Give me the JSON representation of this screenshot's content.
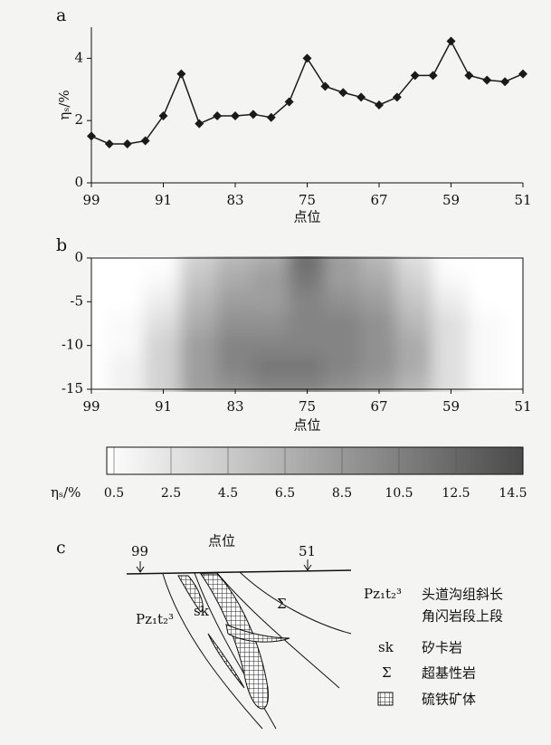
{
  "chart_data": [
    {
      "type": "line",
      "label": "a",
      "x": [
        99,
        97,
        95,
        93,
        91,
        89,
        87,
        85,
        83,
        81,
        79,
        77,
        75,
        73,
        71,
        69,
        67,
        65,
        63,
        61,
        59,
        57,
        55,
        53,
        51
      ],
      "series": [
        {
          "color": "#1a1a1a",
          "values": [
            1.5,
            1.25,
            1.25,
            1.35,
            2.15,
            3.5,
            1.9,
            2.15,
            2.15,
            2.2,
            2.1,
            2.6,
            4.0,
            3.1,
            2.9,
            2.75,
            2.5,
            2.75,
            3.45,
            3.45,
            4.55,
            3.45,
            3.3,
            3.25,
            3.5
          ]
        }
      ],
      "xlim": [
        99,
        51
      ],
      "xticks": [
        99,
        91,
        83,
        75,
        67,
        59,
        51
      ],
      "ylim": [
        0,
        5
      ],
      "yticks": [
        0,
        2,
        4
      ],
      "xlabel": "点位",
      "ylabel": "ηₛ/%"
    },
    {
      "type": "heatmap",
      "label": "b",
      "x": [
        99,
        95,
        91,
        87,
        83,
        79,
        75,
        71,
        67,
        63,
        59,
        55,
        51
      ],
      "y": [
        0,
        -2.5,
        -5,
        -7.5,
        -10,
        -12.5,
        -15
      ],
      "z": [
        [
          0.5,
          0.5,
          0.5,
          4,
          6,
          7,
          12,
          8,
          6,
          3,
          0.5,
          0.5,
          0.5
        ],
        [
          0.5,
          0.5,
          1,
          5,
          7,
          8,
          11,
          8,
          7,
          4,
          1,
          0.5,
          0.5
        ],
        [
          0.5,
          0.5,
          2,
          6,
          8,
          8,
          10,
          9,
          8,
          5,
          2,
          0.5,
          0.5
        ],
        [
          0.5,
          1,
          3,
          7,
          9,
          9,
          10,
          10,
          9,
          6,
          3,
          1,
          0.5
        ],
        [
          0.5,
          1,
          4,
          8,
          10,
          10,
          10,
          10,
          9,
          7,
          3,
          1,
          0.5
        ],
        [
          0.5,
          1.5,
          4,
          8,
          10,
          11,
          11,
          10,
          9,
          7,
          3,
          1,
          0.5
        ],
        [
          0.5,
          1.5,
          4,
          8,
          9,
          10,
          10,
          9,
          8,
          6,
          3,
          1,
          0.5
        ]
      ],
      "xlim": [
        99,
        51
      ],
      "xticks": [
        99,
        91,
        83,
        75,
        67,
        59,
        51
      ],
      "ylim": [
        -15,
        0
      ],
      "yticks": [
        0,
        -5,
        -10,
        -15
      ],
      "xlabel": "点位",
      "colorbar": {
        "label": "ηₛ/%",
        "lim": [
          0.5,
          14.5
        ],
        "ticks": [
          0.5,
          2.5,
          4.5,
          6.5,
          8.5,
          10.5,
          12.5,
          14.5
        ],
        "colors": [
          "#ffffff",
          "#4a4a4a"
        ]
      }
    }
  ],
  "diagram": {
    "label": "c",
    "title": "点位",
    "left_point": "99",
    "right_point": "51",
    "units": {
      "pz": "Pz₁t₂³",
      "sk": "sk",
      "sigma": "Σ"
    },
    "legend": [
      {
        "symbol": "Pz₁t₂³",
        "text": [
          "头道沟组斜长",
          "角闪岩段上段"
        ]
      },
      {
        "symbol": "sk",
        "text": [
          "矽卡岩"
        ]
      },
      {
        "symbol": "Σ",
        "text": [
          "超基性岩"
        ]
      },
      {
        "text": [
          "硫铁矿体"
        ]
      }
    ]
  }
}
